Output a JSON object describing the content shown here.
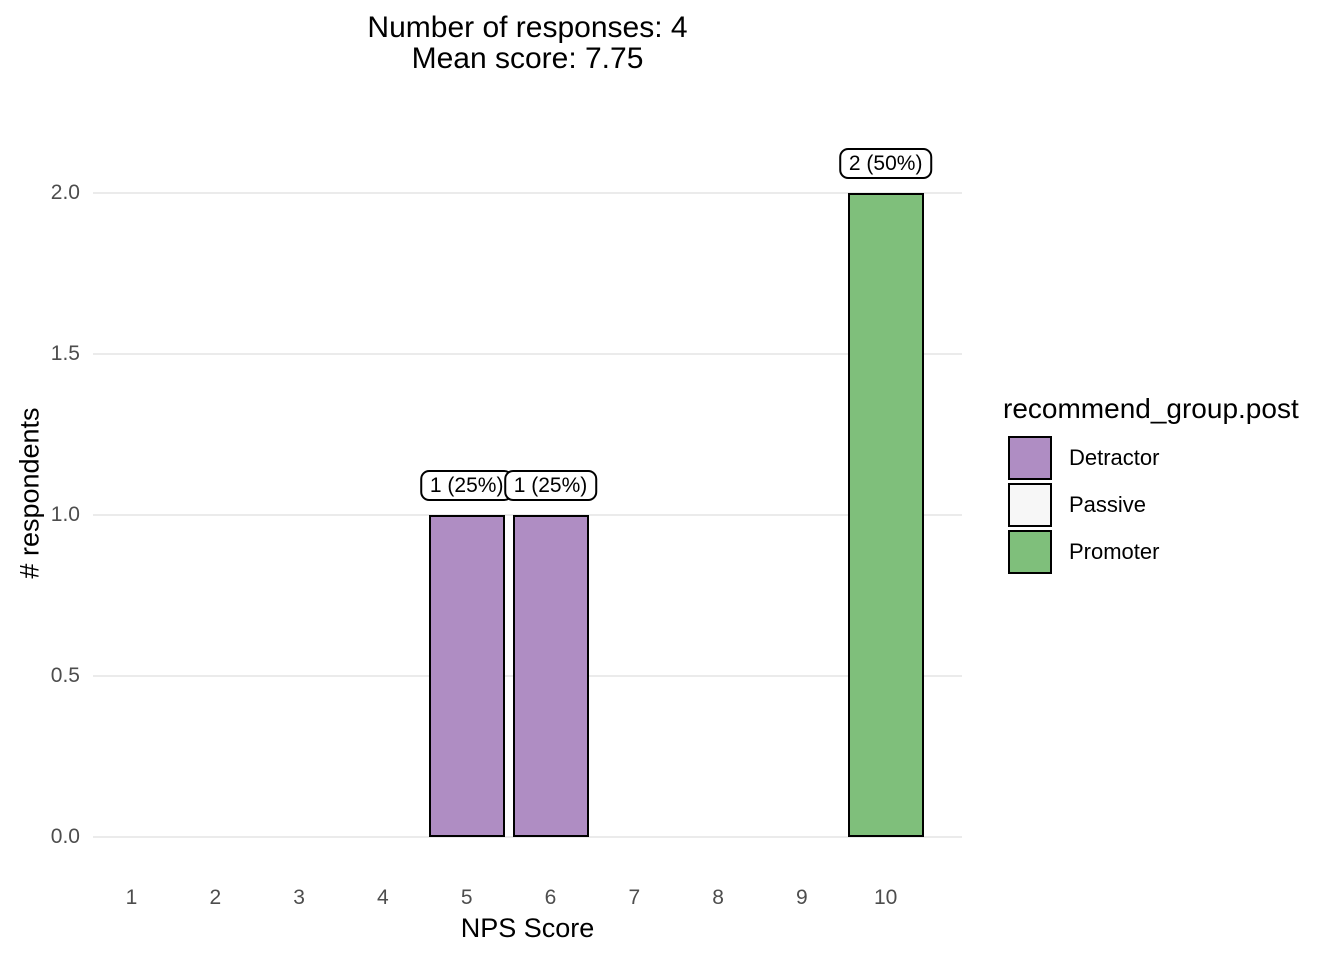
{
  "header": {
    "title_line1": "Number of responses: 4",
    "title_line2": "Mean score: 7.75"
  },
  "axes": {
    "x_label": "NPS Score",
    "y_label": "# respondents",
    "x_ticks": [
      "1",
      "2",
      "3",
      "4",
      "5",
      "6",
      "7",
      "8",
      "9",
      "10"
    ],
    "y_ticks": [
      "0.0",
      "0.5",
      "1.0",
      "1.5",
      "2.0"
    ]
  },
  "legend": {
    "title": "recommend_group.post",
    "items": [
      {
        "label": "Detractor",
        "color": "#af8dc3"
      },
      {
        "label": "Passive",
        "color": "#f7f7f7"
      },
      {
        "label": "Promoter",
        "color": "#7fbf7b"
      }
    ]
  },
  "chart_data": {
    "type": "bar",
    "title": "Number of responses: 4 / Mean score: 7.75",
    "xlabel": "NPS Score",
    "ylabel": "# respondents",
    "categories": [
      "1",
      "2",
      "3",
      "4",
      "5",
      "6",
      "7",
      "8",
      "9",
      "10"
    ],
    "values": [
      0,
      0,
      0,
      0,
      1,
      1,
      0,
      0,
      0,
      2
    ],
    "bar_labels": [
      null,
      null,
      null,
      null,
      "1 (25%)",
      "1 (25%)",
      null,
      null,
      null,
      "2 (50%)"
    ],
    "bar_groups": [
      null,
      null,
      null,
      null,
      "Detractor",
      "Detractor",
      null,
      null,
      null,
      "Promoter"
    ],
    "series_colors": {
      "Detractor": "#af8dc3",
      "Passive": "#f7f7f7",
      "Promoter": "#7fbf7b"
    },
    "ylim": [
      0,
      2
    ],
    "y_tick_values": [
      0,
      0.5,
      1,
      1.5,
      2
    ],
    "grid": "horizontal-major-only",
    "legend_position": "right",
    "legend_title": "recommend_group.post"
  },
  "colors": {
    "grid": "#ebebeb",
    "axis_text": "#4d4d4d",
    "bar_border": "#000000",
    "background": "#ffffff"
  }
}
